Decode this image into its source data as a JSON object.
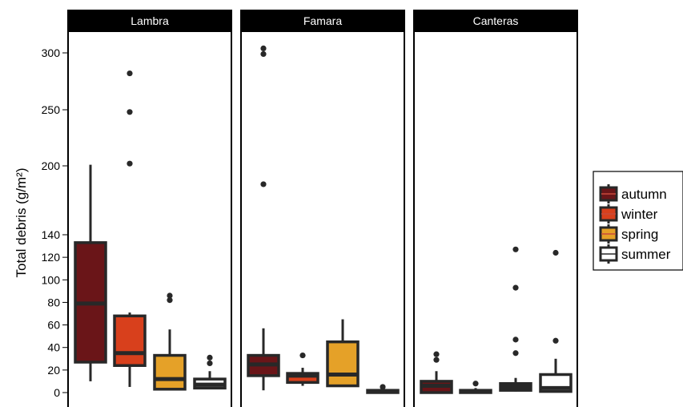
{
  "chart_data": {
    "type": "box",
    "ylabel": "Total debris (g/m²)",
    "y_ticks": [
      0,
      20,
      40,
      60,
      80,
      100,
      120,
      140,
      200,
      250,
      300
    ],
    "legend_position": "right",
    "series": [
      {
        "name": "autumn",
        "color": "#6a1518"
      },
      {
        "name": "winter",
        "color": "#d8401c"
      },
      {
        "name": "spring",
        "color": "#e5a128"
      },
      {
        "name": "summer",
        "color": "#ffffff"
      }
    ],
    "panels": [
      {
        "label": "Lambra",
        "boxes": [
          {
            "series": "autumn",
            "whisker_low": 10,
            "q1": 27,
            "median": 79,
            "q3": 133,
            "whisker_high": 201,
            "outliers": []
          },
          {
            "series": "winter",
            "whisker_low": 5,
            "q1": 24,
            "median": 35,
            "q3": 68,
            "whisker_high": 71,
            "outliers": [
              202,
              248,
              282
            ]
          },
          {
            "series": "spring",
            "whisker_low": 2,
            "q1": 3,
            "median": 12,
            "q3": 33,
            "whisker_high": 56,
            "outliers": [
              82,
              86
            ]
          },
          {
            "series": "summer",
            "whisker_low": 3,
            "q1": 4,
            "median": 7,
            "q3": 12,
            "whisker_high": 19,
            "outliers": [
              26,
              31
            ]
          }
        ]
      },
      {
        "label": "Famara",
        "boxes": [
          {
            "series": "autumn",
            "whisker_low": 2,
            "q1": 15,
            "median": 25,
            "q3": 33,
            "whisker_high": 57,
            "outliers": [
              184,
              299,
              304
            ]
          },
          {
            "series": "winter",
            "whisker_low": 6,
            "q1": 9,
            "median": 15,
            "q3": 17,
            "whisker_high": 22,
            "outliers": [
              33
            ]
          },
          {
            "series": "spring",
            "whisker_low": 5,
            "q1": 6,
            "median": 16,
            "q3": 45,
            "whisker_high": 65,
            "outliers": []
          },
          {
            "series": "summer",
            "whisker_low": 0,
            "q1": 0,
            "median": 1,
            "q3": 2,
            "whisker_high": 3,
            "outliers": [
              5
            ]
          }
        ]
      },
      {
        "label": "Canteras",
        "boxes": [
          {
            "series": "autumn",
            "whisker_low": 0,
            "q1": 0,
            "median": 6,
            "q3": 10,
            "whisker_high": 19,
            "outliers": [
              29,
              34
            ]
          },
          {
            "series": "winter",
            "whisker_low": 0,
            "q1": 0,
            "median": 1,
            "q3": 2,
            "whisker_high": 4,
            "outliers": [
              8
            ]
          },
          {
            "series": "spring",
            "whisker_low": 1,
            "q1": 2,
            "median": 5,
            "q3": 8,
            "whisker_high": 13,
            "outliers": [
              35,
              47,
              93,
              127
            ]
          },
          {
            "series": "summer",
            "whisker_low": 0,
            "q1": 1,
            "median": 4,
            "q3": 16,
            "whisker_high": 30,
            "outliers": [
              46,
              124
            ]
          }
        ]
      }
    ]
  }
}
